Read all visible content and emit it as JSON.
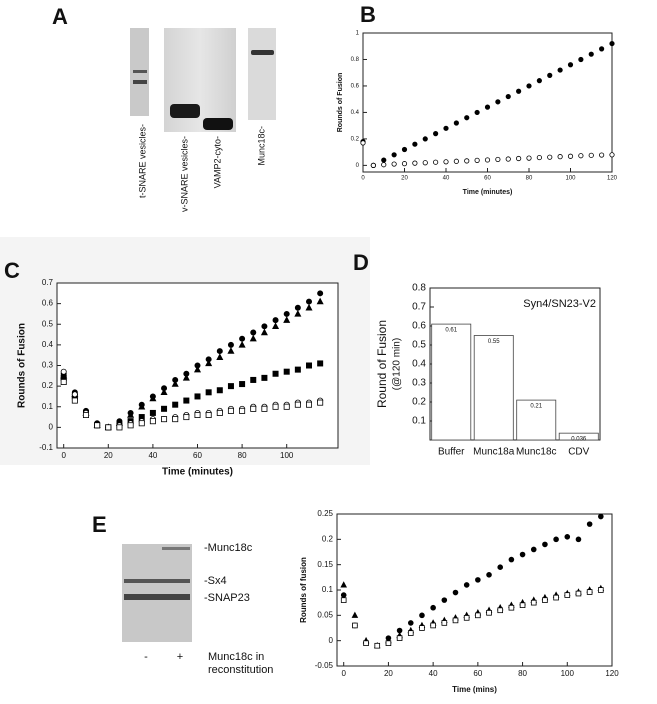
{
  "figure": {
    "panels": [
      "A",
      "B",
      "C",
      "D",
      "E"
    ],
    "gel_a_lanes": [
      "t-SNARE vesicles-",
      "v-SNARE vesicles-",
      "VAMP2-cyto-",
      "Munc18c-"
    ],
    "gel_e": {
      "bands": [
        "-Munc18c",
        "-Sx4",
        "-SNAP23"
      ],
      "lanes": [
        "-",
        "+"
      ],
      "caption": [
        "Munc18c in",
        "reconstitution"
      ]
    }
  },
  "chart_data": [
    {
      "type": "scatter",
      "x_label": "Time (minutes)",
      "y_label": "Rounds of Fusion",
      "x": [
        0,
        5,
        10,
        15,
        20,
        25,
        30,
        35,
        40,
        45,
        50,
        55,
        60,
        65,
        70,
        75,
        80,
        85,
        90,
        95,
        100,
        105,
        110,
        115,
        120
      ],
      "series": [
        {
          "color": "#000000",
          "marker": "circle",
          "values": [
            0.18,
            0.0,
            0.04,
            0.08,
            0.12,
            0.16,
            0.2,
            0.24,
            0.28,
            0.32,
            0.36,
            0.4,
            0.44,
            0.48,
            0.52,
            0.56,
            0.6,
            0.64,
            0.68,
            0.72,
            0.76,
            0.8,
            0.84,
            0.88,
            0.92
          ]
        },
        {
          "color": "#000000",
          "marker": "circle-open",
          "values": [
            0.17,
            0.0,
            0.005,
            0.01,
            0.013,
            0.017,
            0.02,
            0.024,
            0.027,
            0.031,
            0.034,
            0.038,
            0.041,
            0.045,
            0.048,
            0.052,
            0.055,
            0.059,
            0.062,
            0.066,
            0.069,
            0.073,
            0.076,
            0.078,
            0.08
          ]
        }
      ],
      "xlim": [
        0,
        120
      ],
      "xticks": [
        0,
        20,
        40,
        60,
        80,
        100,
        120
      ],
      "ylim": [
        -0.05,
        1
      ],
      "yticks": [
        0,
        0.2,
        0.4,
        0.6,
        0.8,
        1
      ]
    },
    {
      "type": "scatter",
      "x_label": "Time (minutes)",
      "y_label": "Rounds of Fusion",
      "x": [
        0,
        5,
        10,
        15,
        20,
        25,
        30,
        35,
        40,
        45,
        50,
        55,
        60,
        65,
        70,
        75,
        80,
        85,
        90,
        95,
        100,
        105,
        110,
        115
      ],
      "series": [
        {
          "color": "#000000",
          "marker": "circle",
          "values": [
            0.26,
            0.17,
            0.08,
            0.02,
            0.0,
            0.03,
            0.07,
            0.11,
            0.15,
            0.19,
            0.23,
            0.26,
            0.3,
            0.33,
            0.37,
            0.4,
            0.43,
            0.46,
            0.49,
            0.52,
            0.55,
            0.58,
            0.61,
            0.65
          ]
        },
        {
          "color": "#000000",
          "marker": "triangle",
          "values": [
            0.25,
            0.16,
            0.07,
            0.01,
            0.0,
            0.02,
            0.06,
            0.1,
            0.14,
            0.17,
            0.21,
            0.24,
            0.28,
            0.31,
            0.34,
            0.37,
            0.4,
            0.43,
            0.46,
            0.49,
            0.52,
            0.55,
            0.58,
            0.61
          ]
        },
        {
          "color": "#000000",
          "marker": "square",
          "values": [
            0.24,
            0.15,
            0.07,
            0.01,
            0.0,
            0.01,
            0.03,
            0.05,
            0.07,
            0.09,
            0.11,
            0.13,
            0.15,
            0.17,
            0.18,
            0.2,
            0.21,
            0.23,
            0.24,
            0.26,
            0.27,
            0.28,
            0.3,
            0.31
          ]
        },
        {
          "color": "#000000",
          "marker": "circle-open",
          "values": [
            0.27,
            0.16,
            0.07,
            0.01,
            0.0,
            0.01,
            0.02,
            0.03,
            0.04,
            0.04,
            0.05,
            0.06,
            0.07,
            0.07,
            0.08,
            0.09,
            0.09,
            0.1,
            0.1,
            0.11,
            0.11,
            0.12,
            0.12,
            0.13
          ]
        },
        {
          "color": "#000000",
          "marker": "square-open",
          "values": [
            0.22,
            0.13,
            0.06,
            0.01,
            0.0,
            0.0,
            0.01,
            0.02,
            0.03,
            0.04,
            0.04,
            0.05,
            0.06,
            0.06,
            0.07,
            0.08,
            0.08,
            0.09,
            0.09,
            0.1,
            0.1,
            0.11,
            0.11,
            0.12
          ]
        }
      ],
      "xlim": [
        -3,
        123
      ],
      "xticks": [
        0,
        20,
        40,
        60,
        80,
        100
      ],
      "ylim": [
        -0.1,
        0.7
      ],
      "yticks": [
        -0.1,
        0,
        0.1,
        0.2,
        0.3,
        0.4,
        0.5,
        0.6,
        0.7
      ]
    },
    {
      "type": "bar",
      "y_label": "Round of Fusion",
      "y_sublabel": "(@120 min)",
      "annotation": "Syn4/SN23-V2",
      "categories": [
        "Buffer",
        "Munc18a",
        "Munc18c",
        "CDV"
      ],
      "values": [
        0.61,
        0.55,
        0.21,
        0.036
      ],
      "color": "#ffffff",
      "ylim": [
        0,
        0.8
      ],
      "yticks": [
        0.1,
        0.2,
        0.3,
        0.4,
        0.5,
        0.6,
        0.7,
        0.8
      ]
    },
    {
      "type": "scatter",
      "x_label": "Time (mins)",
      "y_label": "Rounds of fusion",
      "x": [
        0,
        5,
        10,
        15,
        20,
        25,
        30,
        35,
        40,
        45,
        50,
        55,
        60,
        65,
        70,
        75,
        80,
        85,
        90,
        95,
        100,
        105,
        110,
        115
      ],
      "series": [
        {
          "color": "#000000",
          "marker": "circle",
          "values": [
            0.09,
            0.03,
            -0.005,
            -0.01,
            0.005,
            0.02,
            0.035,
            0.05,
            0.065,
            0.08,
            0.095,
            0.11,
            0.12,
            0.13,
            0.145,
            0.16,
            0.17,
            0.18,
            0.19,
            0.2,
            0.205,
            0.2,
            0.23,
            0.245
          ]
        },
        {
          "color": "#000000",
          "marker": "triangle",
          "values": [
            0.11,
            0.05,
            0.0,
            -0.01,
            0.0,
            0.01,
            0.02,
            0.03,
            0.035,
            0.04,
            0.045,
            0.05,
            0.055,
            0.06,
            0.065,
            0.07,
            0.075,
            0.08,
            0.085,
            0.09,
            0.093,
            0.096,
            0.1,
            0.103
          ]
        },
        {
          "color": "#000000",
          "marker": "square-open",
          "values": [
            0.08,
            0.03,
            -0.005,
            -0.01,
            -0.005,
            0.005,
            0.015,
            0.025,
            0.03,
            0.035,
            0.04,
            0.045,
            0.05,
            0.055,
            0.06,
            0.065,
            0.07,
            0.075,
            0.08,
            0.085,
            0.09,
            0.093,
            0.096,
            0.1
          ]
        }
      ],
      "xlim": [
        -3,
        120
      ],
      "xticks": [
        0,
        20,
        40,
        60,
        80,
        100,
        120
      ],
      "ylim": [
        -0.05,
        0.25
      ],
      "yticks": [
        -0.05,
        0,
        0.05,
        0.1,
        0.15,
        0.2,
        0.25
      ]
    }
  ]
}
